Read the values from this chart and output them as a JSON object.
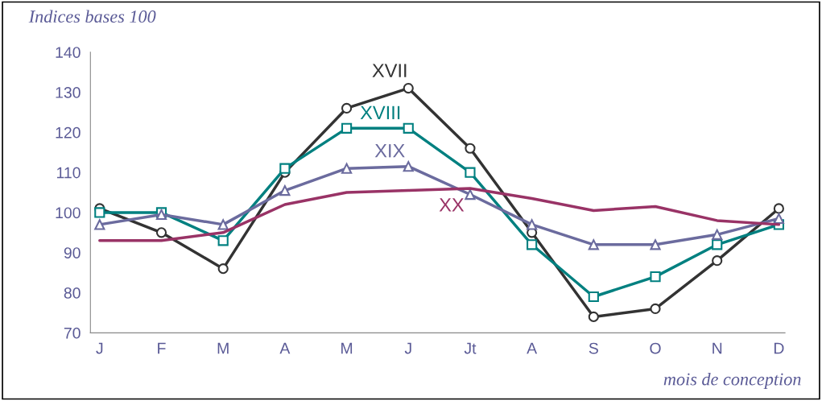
{
  "chart_data": {
    "type": "line",
    "xlabel": "mois de conception",
    "ylabel": "Indices bases 100",
    "categories": [
      "J",
      "F",
      "M",
      "A",
      "M",
      "J",
      "Jt",
      "A",
      "S",
      "O",
      "N",
      "D"
    ],
    "ylim": [
      70,
      140
    ],
    "yticks": [
      70,
      80,
      90,
      100,
      110,
      120,
      130,
      140
    ],
    "grid": false,
    "legend": false,
    "series": [
      {
        "name": "XVII",
        "color": "#333333",
        "marker": "circle",
        "values": [
          101,
          95,
          86,
          110,
          126,
          131,
          116,
          95,
          74,
          76,
          88,
          101
        ]
      },
      {
        "name": "XVIII",
        "color": "#008080",
        "marker": "square",
        "values": [
          100,
          100,
          93,
          111,
          121,
          121,
          110,
          92,
          79,
          84,
          92,
          97
        ]
      },
      {
        "name": "XIX",
        "color": "#6b6b9e",
        "marker": "triangle",
        "values": [
          97,
          99.5,
          97,
          105.5,
          111,
          111.5,
          104.5,
          97,
          92,
          92,
          94.5,
          98.5
        ]
      },
      {
        "name": "XX",
        "color": "#993366",
        "marker": "none",
        "values": [
          93,
          93,
          95,
          102,
          105,
          105.5,
          106,
          103.5,
          100.5,
          101.5,
          98,
          97
        ]
      }
    ]
  }
}
